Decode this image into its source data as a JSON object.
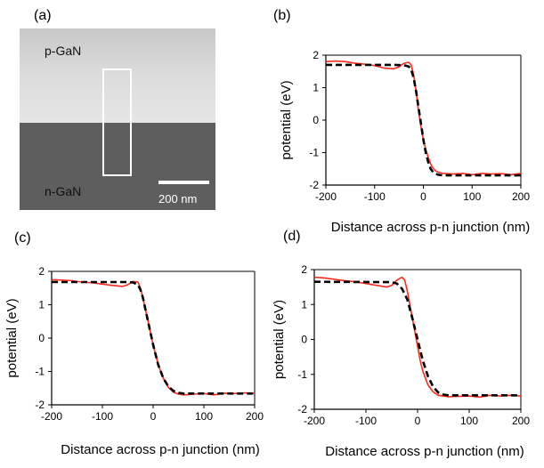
{
  "panel_labels": [
    "(a)",
    "(b)",
    "(c)",
    "(d)"
  ],
  "micrograph": {
    "top_region_label": "p-GaN",
    "bottom_region_label": "n-GaN",
    "scale_bar_label": "200 nm",
    "colors": {
      "top_region": "#d8d8d8",
      "bottom_region": "#5e5e5e",
      "roi_box": "#ffffff"
    }
  },
  "colors": {
    "measured": "#ff2a1a",
    "model": "#000000"
  },
  "chart_data": [
    {
      "type": "line",
      "panel": "(b)",
      "xlabel": "Distance across p-n junction  (nm)",
      "ylabel": "potential   (eV)",
      "xlim": [
        -200,
        200
      ],
      "ylim": [
        -2,
        2
      ],
      "xticks": [
        "-200",
        "-100",
        "0",
        "100",
        "200"
      ],
      "yticks": [
        "2",
        "1",
        "0",
        "-1",
        "-2"
      ],
      "grid": false,
      "series": [
        {
          "style": "solid-red",
          "x": [
            -200,
            -180,
            -160,
            -140,
            -120,
            -100,
            -80,
            -60,
            -50,
            -40,
            -30,
            -25,
            -20,
            -15,
            -10,
            -5,
            0,
            5,
            10,
            15,
            20,
            25,
            30,
            35,
            40,
            50,
            60,
            80,
            100,
            120,
            140,
            160,
            180,
            200
          ],
          "y": [
            1.8,
            1.82,
            1.8,
            1.75,
            1.72,
            1.68,
            1.6,
            1.58,
            1.64,
            1.75,
            1.78,
            1.7,
            1.4,
            0.9,
            0.3,
            -0.2,
            -0.6,
            -0.9,
            -1.15,
            -1.35,
            -1.48,
            -1.56,
            -1.6,
            -1.62,
            -1.64,
            -1.65,
            -1.66,
            -1.64,
            -1.68,
            -1.64,
            -1.66,
            -1.65,
            -1.68,
            -1.64
          ]
        },
        {
          "style": "dashed-black",
          "x": [
            -200,
            -60,
            -40,
            -30,
            -25,
            -20,
            -15,
            -10,
            -5,
            0,
            5,
            10,
            15,
            20,
            25,
            30,
            40,
            200
          ],
          "y": [
            1.7,
            1.7,
            1.69,
            1.65,
            1.55,
            1.3,
            0.9,
            0.4,
            -0.1,
            -0.6,
            -1.0,
            -1.3,
            -1.5,
            -1.6,
            -1.65,
            -1.68,
            -1.7,
            -1.7
          ]
        }
      ]
    },
    {
      "type": "line",
      "panel": "(c)",
      "xlabel": "Distance across p-n junction  (nm)",
      "ylabel": "potential   (eV)",
      "xlim": [
        -200,
        200
      ],
      "ylim": [
        -2,
        2
      ],
      "xticks": [
        "-200",
        "-100",
        "0",
        "100",
        "200"
      ],
      "yticks": [
        "2",
        "1",
        "0",
        "-1",
        "-2"
      ],
      "grid": false,
      "series": [
        {
          "style": "solid-red",
          "x": [
            -200,
            -180,
            -160,
            -140,
            -120,
            -100,
            -80,
            -60,
            -50,
            -40,
            -30,
            -25,
            -20,
            -10,
            0,
            10,
            20,
            30,
            40,
            50,
            60,
            80,
            100,
            120,
            140,
            160,
            180,
            200
          ],
          "y": [
            1.75,
            1.74,
            1.72,
            1.68,
            1.66,
            1.62,
            1.58,
            1.55,
            1.6,
            1.7,
            1.68,
            1.5,
            1.2,
            0.5,
            -0.2,
            -0.8,
            -1.2,
            -1.48,
            -1.62,
            -1.68,
            -1.7,
            -1.68,
            -1.66,
            -1.7,
            -1.65,
            -1.66,
            -1.64,
            -1.65
          ]
        },
        {
          "style": "dashed-black",
          "x": [
            -200,
            -50,
            -40,
            -30,
            -25,
            -20,
            -10,
            0,
            10,
            20,
            30,
            40,
            50,
            60,
            200
          ],
          "y": [
            1.68,
            1.68,
            1.67,
            1.6,
            1.45,
            1.2,
            0.5,
            -0.2,
            -0.8,
            -1.2,
            -1.45,
            -1.58,
            -1.64,
            -1.66,
            -1.66
          ]
        }
      ]
    },
    {
      "type": "line",
      "panel": "(d)",
      "xlabel": "Distance across p-n junction  (nm)",
      "ylabel": "potential   (eV)",
      "xlim": [
        -200,
        200
      ],
      "ylim": [
        -2,
        2
      ],
      "xticks": [
        "-200",
        "-100",
        "0",
        "100",
        "200"
      ],
      "yticks": [
        "2",
        "1",
        "0",
        "-1",
        "-2"
      ],
      "grid": false,
      "series": [
        {
          "style": "solid-red",
          "x": [
            -200,
            -180,
            -160,
            -140,
            -120,
            -100,
            -80,
            -60,
            -50,
            -40,
            -30,
            -25,
            -20,
            -15,
            -10,
            -5,
            0,
            5,
            10,
            20,
            30,
            40,
            50,
            60,
            80,
            100,
            120,
            140,
            160,
            180,
            200
          ],
          "y": [
            1.78,
            1.76,
            1.72,
            1.68,
            1.65,
            1.6,
            1.55,
            1.5,
            1.55,
            1.7,
            1.78,
            1.7,
            1.4,
            1.0,
            0.6,
            0.2,
            -0.2,
            -0.6,
            -0.9,
            -1.3,
            -1.5,
            -1.6,
            -1.62,
            -1.64,
            -1.63,
            -1.62,
            -1.65,
            -1.6,
            -1.62,
            -1.6,
            -1.62
          ]
        },
        {
          "style": "dashed-black",
          "x": [
            -200,
            -50,
            -40,
            -30,
            -20,
            -10,
            0,
            10,
            20,
            30,
            40,
            50,
            60,
            200
          ],
          "y": [
            1.65,
            1.64,
            1.6,
            1.45,
            1.15,
            0.6,
            0.0,
            -0.6,
            -1.05,
            -1.35,
            -1.52,
            -1.58,
            -1.6,
            -1.6
          ]
        }
      ]
    }
  ]
}
